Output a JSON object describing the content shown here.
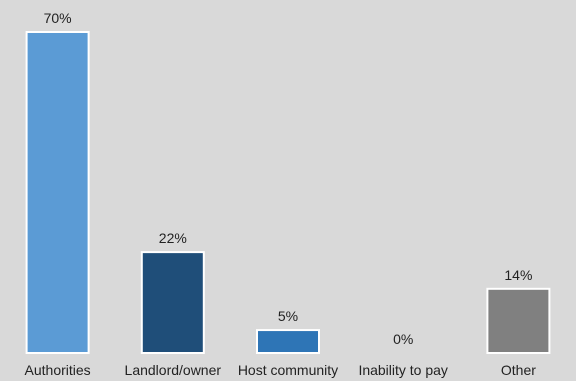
{
  "chart_data": {
    "type": "bar",
    "title": "",
    "xlabel": "",
    "ylabel": "",
    "categories": [
      "Authorities",
      "Landlord/owner",
      "Host community",
      "Inability to pay",
      "Other"
    ],
    "values": [
      70,
      22,
      5,
      0,
      14
    ],
    "value_labels": [
      "70%",
      "22%",
      "5%",
      "0%",
      "14%"
    ],
    "ylim": [
      0,
      70
    ],
    "grid": false,
    "legend": "none",
    "bar_colors": [
      "#5b9bd5",
      "#1f4e79",
      "#2e75b6",
      "#5b9bd5",
      "#808080"
    ],
    "bar_border_color": "#ffffff",
    "background_color": "#d9d9d9"
  }
}
